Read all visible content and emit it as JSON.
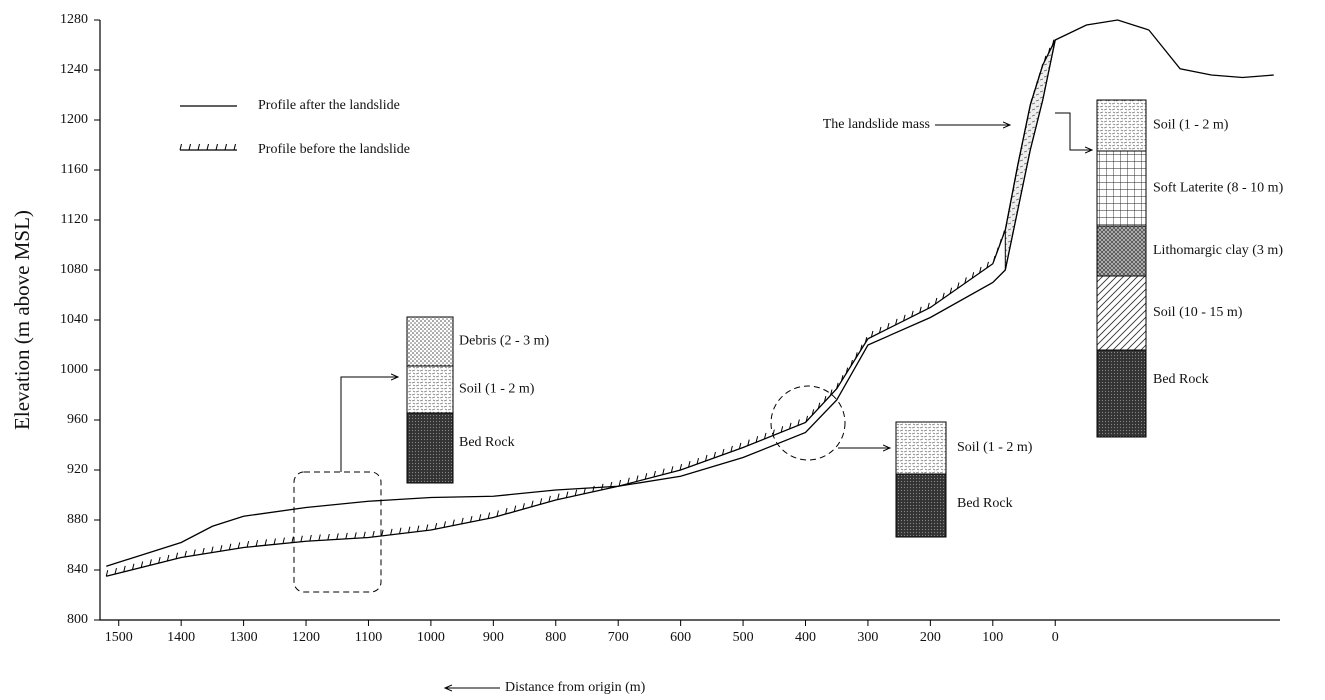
{
  "chart_data": {
    "type": "line",
    "x_label": "Distance from origin (m)",
    "y_label": "Elevation (m above MSL)",
    "x": [
      1520,
      1400,
      1350,
      1300,
      1200,
      1100,
      1000,
      900,
      800,
      700,
      600,
      500,
      400,
      350,
      300,
      200,
      100,
      80,
      60,
      40,
      20,
      0,
      -50,
      -100,
      -150,
      -200,
      -250,
      -300,
      -350
    ],
    "series": [
      {
        "name": "Profile after the landslide",
        "color": "#000000",
        "values": [
          843,
          862,
          875,
          883,
          890,
          895,
          898,
          899,
          904,
          907,
          915,
          930,
          950,
          976,
          1020,
          1042,
          1070,
          1080,
          1128,
          1176,
          1216,
          1264,
          1276,
          1280,
          1272,
          1241,
          1236,
          1234,
          1236
        ]
      },
      {
        "name": "Profile before the landslide",
        "color": "#000000",
        "hatched": true,
        "values": [
          835,
          850,
          854,
          858,
          863,
          866,
          872,
          882,
          896,
          907,
          920,
          938,
          958,
          985,
          1025,
          1050,
          1085,
          1112,
          1164,
          1212,
          1244,
          1264,
          null,
          null,
          null,
          null,
          null,
          null,
          null
        ]
      }
    ],
    "xlim": [
      1530,
      -360
    ],
    "xticks": [
      1500,
      1400,
      1300,
      1200,
      1100,
      1000,
      900,
      800,
      700,
      600,
      500,
      400,
      300,
      200,
      100,
      0
    ],
    "ylim": [
      800,
      1280
    ],
    "yticks": [
      800,
      840,
      880,
      920,
      960,
      1000,
      1040,
      1080,
      1120,
      1160,
      1200,
      1240,
      1280
    ],
    "legend": "top-left",
    "annotations": [
      "The landslide mass"
    ],
    "soil_columns": [
      {
        "layers": [
          "Debris (2 - 3 m)",
          "Soil (1 - 2 m)",
          "Bed Rock"
        ]
      },
      {
        "layers": [
          "Soil (1 - 2 m)",
          "Bed Rock"
        ]
      },
      {
        "layers": [
          "Soil (1 - 2 m)",
          "Soft Laterite (8 - 10 m)",
          "Lithomargic clay (3 m)",
          "Soil (10 - 15 m)",
          "Bed Rock"
        ]
      }
    ]
  }
}
